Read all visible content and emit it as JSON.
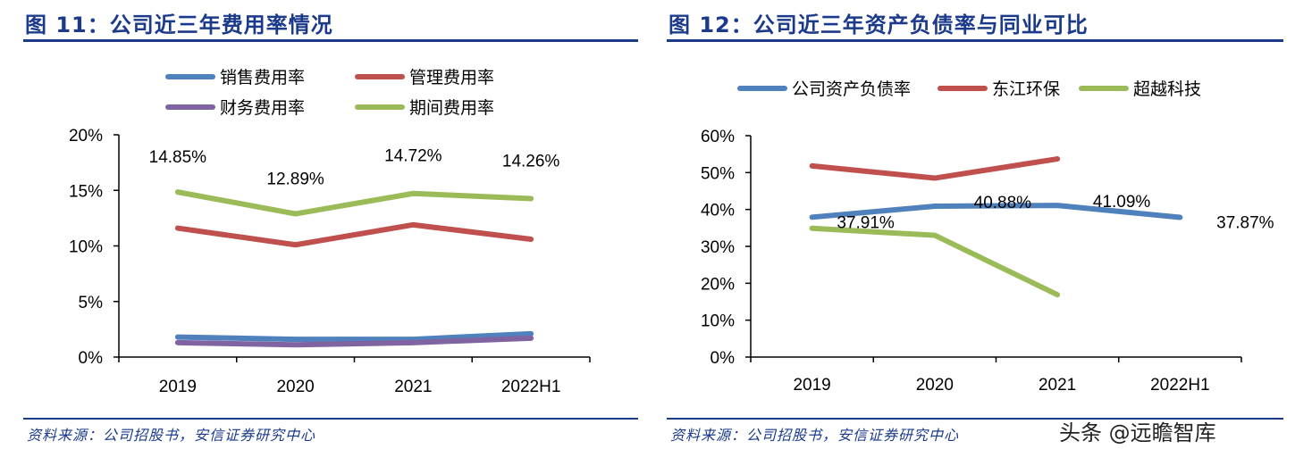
{
  "left": {
    "title": "图 11：公司近三年费用率情况",
    "source": "资料来源：公司招股书，安信证券研究中心"
  },
  "right": {
    "title": "图 12：公司近三年资产负债率与同业可比",
    "source": "资料来源：公司招股书，安信证券研究中心"
  },
  "watermark": "头条 @远瞻智库",
  "chart_data": [
    {
      "type": "line",
      "categories": [
        "2019",
        "2020",
        "2021",
        "2022H1"
      ],
      "ylim": [
        0,
        20
      ],
      "yticks": [
        "0%",
        "5%",
        "10%",
        "15%",
        "20%"
      ],
      "legend_position": "top",
      "grid": false,
      "series": [
        {
          "name": "销售费用率",
          "color": "#4f81bd",
          "values": [
            1.8,
            1.6,
            1.6,
            2.1
          ]
        },
        {
          "name": "管理费用率",
          "color": "#c0504d",
          "values": [
            11.6,
            10.1,
            11.9,
            10.6
          ]
        },
        {
          "name": "财务费用率",
          "color": "#8064a2",
          "values": [
            1.3,
            1.1,
            1.3,
            1.7
          ]
        },
        {
          "name": "期间费用率",
          "color": "#9bbb59",
          "values": [
            14.85,
            12.89,
            14.72,
            14.26
          ],
          "labels": [
            "14.85%",
            "12.89%",
            "14.72%",
            "14.26%"
          ]
        }
      ]
    },
    {
      "type": "line",
      "categories": [
        "2019",
        "2020",
        "2021",
        "2022H1"
      ],
      "ylim": [
        0,
        60
      ],
      "yticks": [
        "0%",
        "10%",
        "20%",
        "30%",
        "40%",
        "50%",
        "60%"
      ],
      "legend_position": "top",
      "grid": false,
      "series": [
        {
          "name": "公司资产负债率",
          "color": "#4f81bd",
          "values": [
            37.91,
            40.88,
            41.09,
            37.87
          ],
          "labels": [
            "37.91%",
            "40.88%",
            "41.09%",
            "37.87%"
          ]
        },
        {
          "name": "东江环保",
          "color": "#c0504d",
          "values": [
            51.8,
            48.5,
            53.7,
            null
          ]
        },
        {
          "name": "超越科技",
          "color": "#9bbb59",
          "values": [
            34.9,
            33.0,
            16.9,
            null
          ]
        }
      ]
    }
  ]
}
